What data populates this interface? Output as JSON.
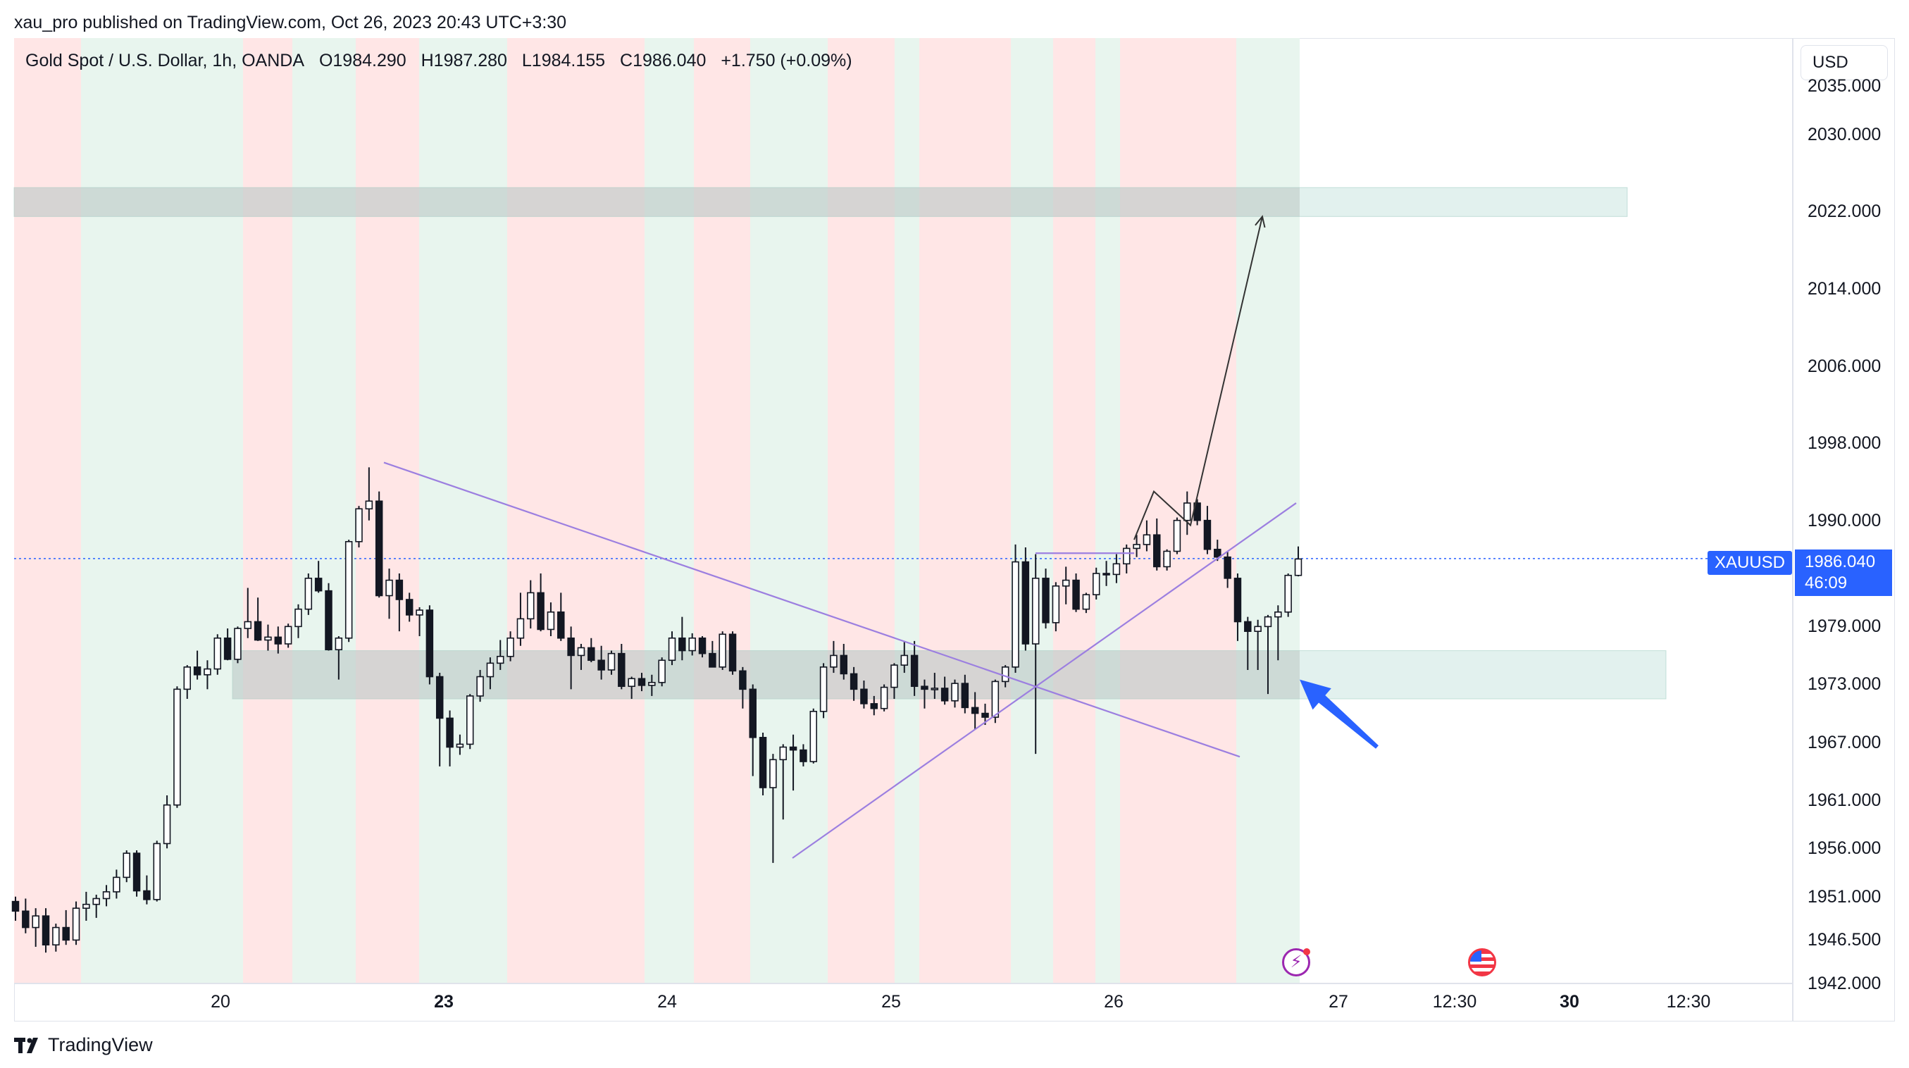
{
  "publisher_line": "xau_pro published on TradingView.com, Oct 26, 2023 20:43 UTC+3:30",
  "legend": {
    "symbol": "Gold Spot / U.S. Dollar, 1h, OANDA",
    "open": "O1984.290",
    "high": "H1987.280",
    "low": "L1984.155",
    "close": "C1986.040",
    "change": "+1.750 (+0.09%)"
  },
  "currency": "USD",
  "price_axis": [
    "2035.000",
    "2030.000",
    "2022.000",
    "2014.000",
    "2006.000",
    "1998.000",
    "1990.000",
    "1979.000",
    "1973.000",
    "1967.000",
    "1961.000",
    "1956.000",
    "1951.000",
    "1946.500",
    "1942.000"
  ],
  "time_axis": [
    {
      "label": "20",
      "bold": false
    },
    {
      "label": "23",
      "bold": true
    },
    {
      "label": "24",
      "bold": false
    },
    {
      "label": "25",
      "bold": false
    },
    {
      "label": "26",
      "bold": false
    },
    {
      "label": "27",
      "bold": false
    },
    {
      "label": "12:30",
      "bold": false
    },
    {
      "label": "30",
      "bold": true
    },
    {
      "label": "12:30",
      "bold": false
    }
  ],
  "last_price": {
    "symbol": "XAUUSD",
    "price": "1986.040",
    "countdown": "46:09"
  },
  "branding": "TradingView",
  "icons": {
    "event_1": "flash-event-icon",
    "event_2": "us-flag-event-icon"
  },
  "colors": {
    "up_band": "#e8f5ee",
    "down_band": "#ffe6e6",
    "zone": "#d8f0ec",
    "trendline": "#9c7fe0",
    "accent": "#2962ff"
  },
  "chart_data": {
    "type": "candlestick",
    "symbol": "XAUUSD",
    "timeframe": "1h",
    "ylim": [
      1942,
      2040
    ],
    "ticks_y": [
      2035,
      2030,
      2022,
      2014,
      2006,
      1998,
      1990,
      1979,
      1973,
      1967,
      1961,
      1956,
      1951,
      1946.5,
      1942
    ],
    "series": [
      {
        "values": [
          [
            1950.5,
            1951,
            1948.5,
            1949.5
          ],
          [
            1949.5,
            1950.8,
            1947.2,
            1947.8
          ],
          [
            1947.8,
            1949.8,
            1945.8,
            1949
          ],
          [
            1949,
            1949.8,
            1945.2,
            1946
          ],
          [
            1946,
            1948.2,
            1945.3,
            1947.8
          ],
          [
            1947.8,
            1949.6,
            1946,
            1946.5
          ],
          [
            1946.5,
            1950.5,
            1946,
            1949.8
          ],
          [
            1949.8,
            1951.5,
            1948.5,
            1950.2
          ],
          [
            1950.2,
            1951.2,
            1948.8,
            1950.8
          ],
          [
            1950.8,
            1952.2,
            1950,
            1951.5
          ],
          [
            1951.5,
            1953.8,
            1950.8,
            1953
          ],
          [
            1953,
            1955.8,
            1952.5,
            1955.5
          ],
          [
            1955.5,
            1955.8,
            1951,
            1951.6
          ],
          [
            1951.6,
            1953.2,
            1950.2,
            1950.7
          ],
          [
            1950.7,
            1956.8,
            1950.5,
            1956.5
          ],
          [
            1956.5,
            1961.5,
            1956,
            1960.5
          ],
          [
            1960.5,
            1972.8,
            1960.2,
            1972.5
          ],
          [
            1972.5,
            1975,
            1971.5,
            1974.8
          ],
          [
            1974.8,
            1976.5,
            1973.5,
            1974
          ],
          [
            1974,
            1975.5,
            1972.5,
            1974.6
          ],
          [
            1974.6,
            1978.2,
            1974,
            1977.8
          ],
          [
            1977.8,
            1978.8,
            1975.5,
            1975.6
          ],
          [
            1975.6,
            1979,
            1975.2,
            1978.8
          ],
          [
            1978.8,
            1983,
            1977.8,
            1979.5
          ],
          [
            1979.5,
            1982,
            1977.5,
            1977.6
          ],
          [
            1977.6,
            1979.2,
            1976.5,
            1977.9
          ],
          [
            1977.9,
            1979,
            1976.2,
            1977.2
          ],
          [
            1977.2,
            1979.3,
            1976.8,
            1979
          ],
          [
            1979,
            1981.3,
            1977.8,
            1980.8
          ],
          [
            1980.8,
            1984.5,
            1980.2,
            1984
          ],
          [
            1984,
            1985.8,
            1982.5,
            1982.7
          ],
          [
            1982.7,
            1983.5,
            1976.5,
            1976.6
          ],
          [
            1976.6,
            1978,
            1973.5,
            1977.8
          ],
          [
            1977.8,
            1988,
            1977.4,
            1987.8
          ],
          [
            1987.8,
            1991.5,
            1987.2,
            1991.2
          ],
          [
            1991.2,
            1995.5,
            1990,
            1992
          ],
          [
            1992,
            1993,
            1982,
            1982.2
          ],
          [
            1982.2,
            1985,
            1979.8,
            1983.8
          ],
          [
            1983.8,
            1984.5,
            1978.5,
            1981.8
          ],
          [
            1981.8,
            1982.5,
            1979.5,
            1980.2
          ],
          [
            1980.2,
            1981,
            1978,
            1980.7
          ],
          [
            1980.7,
            1981.2,
            1973,
            1973.8
          ],
          [
            1973.8,
            1974.2,
            1964.5,
            1969.5
          ],
          [
            1969.5,
            1970.3,
            1964.5,
            1966.5
          ],
          [
            1966.5,
            1967.8,
            1965.7,
            1966.8
          ],
          [
            1966.8,
            1972,
            1966.3,
            1971.8
          ],
          [
            1971.8,
            1974.5,
            1971.2,
            1973.8
          ],
          [
            1973.8,
            1975.8,
            1972.5,
            1975.2
          ],
          [
            1975.2,
            1977.6,
            1974.5,
            1975.9
          ],
          [
            1975.9,
            1978.5,
            1975.4,
            1977.8
          ],
          [
            1977.8,
            1982.5,
            1977,
            1979.8
          ],
          [
            1979.8,
            1983.8,
            1978.8,
            1982.5
          ],
          [
            1982.5,
            1984.5,
            1978.5,
            1978.7
          ],
          [
            1978.7,
            1981.5,
            1978,
            1980.5
          ],
          [
            1980.5,
            1982.5,
            1977.5,
            1977.8
          ],
          [
            1977.8,
            1979,
            1972.5,
            1976
          ],
          [
            1976,
            1977.2,
            1974.5,
            1976.8
          ],
          [
            1976.8,
            1977.8,
            1975.3,
            1975.5
          ],
          [
            1975.5,
            1977,
            1973.5,
            1974.5
          ],
          [
            1974.5,
            1976.5,
            1974,
            1976.2
          ],
          [
            1976.2,
            1977.2,
            1972.5,
            1972.8
          ],
          [
            1972.8,
            1973.8,
            1971.5,
            1973.6
          ],
          [
            1973.6,
            1974.2,
            1972.3,
            1972.9
          ],
          [
            1972.9,
            1974,
            1971.8,
            1973.2
          ],
          [
            1973.2,
            1975.8,
            1972.8,
            1975.5
          ],
          [
            1975.5,
            1978.5,
            1975,
            1977.8
          ],
          [
            1977.8,
            1980,
            1975.5,
            1976.5
          ],
          [
            1976.5,
            1978.3,
            1976,
            1977.8
          ],
          [
            1977.8,
            1978,
            1975.8,
            1976.2
          ],
          [
            1976.2,
            1977.5,
            1974.8,
            1974.8
          ],
          [
            1974.8,
            1978.5,
            1974.5,
            1978.2
          ],
          [
            1978.2,
            1978.5,
            1974,
            1974.4
          ],
          [
            1974.4,
            1974.8,
            1970.5,
            1972.5
          ],
          [
            1972.5,
            1973,
            1963.5,
            1967.5
          ],
          [
            1967.5,
            1968,
            1961.5,
            1962.3
          ],
          [
            1962.3,
            1965.8,
            1954.5,
            1965.2
          ],
          [
            1965.2,
            1966.8,
            1959,
            1966.5
          ],
          [
            1966.5,
            1967.8,
            1962,
            1966.2
          ],
          [
            1966.2,
            1966.8,
            1964.5,
            1965
          ],
          [
            1965,
            1970.5,
            1964.8,
            1970.2
          ],
          [
            1970.2,
            1975.2,
            1969.5,
            1974.8
          ],
          [
            1974.8,
            1977.5,
            1974.2,
            1976
          ],
          [
            1976,
            1977.2,
            1973.5,
            1974.1
          ],
          [
            1974.1,
            1974.8,
            1971.3,
            1972.5
          ],
          [
            1972.5,
            1973.4,
            1970.5,
            1971
          ],
          [
            1971,
            1971.8,
            1969.8,
            1970.5
          ],
          [
            1970.5,
            1973,
            1970.2,
            1972.7
          ],
          [
            1972.7,
            1975.2,
            1971.5,
            1975
          ],
          [
            1975,
            1977.5,
            1974.2,
            1976
          ],
          [
            1976,
            1977.5,
            1971.8,
            1972.8
          ],
          [
            1972.8,
            1973.5,
            1970.5,
            1972.5
          ],
          [
            1972.5,
            1974.2,
            1971.5,
            1972.6
          ],
          [
            1972.6,
            1973.8,
            1970.9,
            1971.3
          ],
          [
            1971.3,
            1973.5,
            1970.6,
            1973.1
          ],
          [
            1973.1,
            1974,
            1970,
            1970.6
          ],
          [
            1970.6,
            1972.2,
            1968.3,
            1970
          ],
          [
            1970,
            1971,
            1968.8,
            1969.6
          ],
          [
            1969.6,
            1973.5,
            1969,
            1973.3
          ],
          [
            1973.3,
            1975,
            1972.7,
            1974.8
          ],
          [
            1974.8,
            1987.5,
            1974.2,
            1985.7
          ],
          [
            1985.7,
            1987.2,
            1976.5,
            1977.2
          ],
          [
            1977.2,
            1986.5,
            1965.8,
            1984
          ],
          [
            1984,
            1985,
            1978.8,
            1979.4
          ],
          [
            1979.4,
            1983.6,
            1978.5,
            1983.2
          ],
          [
            1983.2,
            1985.2,
            1981.3,
            1983.8
          ],
          [
            1983.8,
            1984.5,
            1980.5,
            1980.8
          ],
          [
            1980.8,
            1982.5,
            1980.4,
            1982.3
          ],
          [
            1982.3,
            1985.1,
            1981.8,
            1984.5
          ],
          [
            1984.5,
            1985.8,
            1983.2,
            1984.4
          ],
          [
            1984.4,
            1986.5,
            1983.5,
            1985.5
          ],
          [
            1985.5,
            1987.5,
            1984.5,
            1987.1
          ],
          [
            1987.1,
            1988.5,
            1986.2,
            1987.5
          ],
          [
            1987.5,
            1990,
            1986.8,
            1988.5
          ],
          [
            1988.5,
            1990.2,
            1984.8,
            1985.2
          ],
          [
            1985.2,
            1987,
            1984.8,
            1986.8
          ],
          [
            1986.8,
            1990.3,
            1986.5,
            1990
          ],
          [
            1990,
            1993,
            1988.5,
            1991.8
          ],
          [
            1991.8,
            1992.2,
            1989.5,
            1990
          ],
          [
            1990,
            1991.5,
            1986.5,
            1987
          ],
          [
            1987,
            1988,
            1985.8,
            1986.2
          ],
          [
            1986.2,
            1986.8,
            1983,
            1984
          ],
          [
            1984,
            1984.5,
            1977.5,
            1979.5
          ],
          [
            1979.5,
            1980,
            1974.5,
            1978.5
          ],
          [
            1978.5,
            1979.7,
            1974.5,
            1979
          ],
          [
            1979,
            1980.2,
            1972,
            1980
          ],
          [
            1980,
            1981.2,
            1975.5,
            1980.5
          ],
          [
            1980.5,
            1984.5,
            1980,
            1984.3
          ],
          [
            1984.3,
            1987.3,
            1984.2,
            1986
          ]
        ]
      }
    ],
    "session_bands": [
      [
        20,
        115,
        "down"
      ],
      [
        115,
        345,
        "up"
      ],
      [
        345,
        415,
        "down"
      ],
      [
        415,
        505,
        "up"
      ],
      [
        505,
        595,
        "down"
      ],
      [
        595,
        720,
        "up"
      ],
      [
        720,
        915,
        "down"
      ],
      [
        915,
        985,
        "up"
      ],
      [
        985,
        1065,
        "down"
      ],
      [
        1065,
        1175,
        "up"
      ],
      [
        1175,
        1270,
        "down"
      ],
      [
        1270,
        1305,
        "up"
      ],
      [
        1305,
        1435,
        "down"
      ],
      [
        1435,
        1495,
        "up"
      ],
      [
        1495,
        1555,
        "down"
      ],
      [
        1555,
        1590,
        "up"
      ],
      [
        1590,
        1755,
        "down"
      ],
      [
        1755,
        1845,
        "up"
      ]
    ],
    "zones": [
      [
        2021.5,
        2024.5
      ],
      [
        1971.5,
        1976.5
      ]
    ],
    "annotations": [
      {
        "type": "trendline",
        "points": [
          [
            545,
            1996
          ],
          [
            1760,
            1965.5
          ]
        ]
      },
      {
        "type": "trendline",
        "points": [
          [
            1125,
            1955
          ],
          [
            1840,
            1991.8
          ]
        ]
      },
      {
        "type": "horizontal_segment",
        "price": 1986.6,
        "range": [
          1470,
          1610
        ]
      },
      {
        "type": "projection_path",
        "points": [
          [
            1610,
            1988
          ],
          [
            1638,
            1993
          ],
          [
            1690,
            1989.5
          ],
          [
            1792,
            2021.5
          ]
        ]
      },
      {
        "type": "arrow",
        "color": "#2962ff",
        "points": [
          [
            1955,
            1966.5
          ],
          [
            1845,
            1973.5
          ]
        ]
      }
    ],
    "last_price_line": 1986.04
  }
}
